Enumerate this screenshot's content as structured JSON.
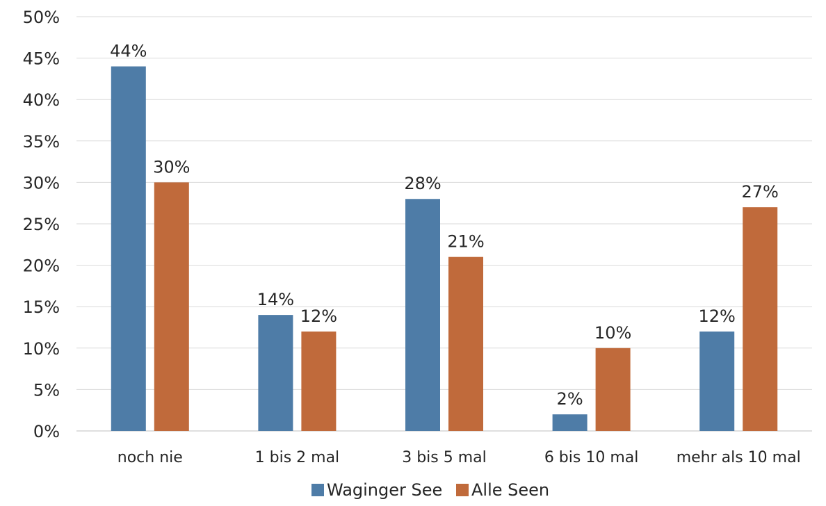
{
  "chart_data": {
    "type": "bar",
    "categories": [
      "noch nie",
      "1 bis 2 mal",
      "3 bis 5 mal",
      "6 bis 10 mal",
      "mehr als 10 mal"
    ],
    "series": [
      {
        "name": "Waginger See",
        "values": [
          44,
          14,
          28,
          2,
          12
        ],
        "labels": [
          "44%",
          "14%",
          "28%",
          "2%",
          "12%"
        ],
        "color": "#4e7ca7"
      },
      {
        "name": "Alle Seen",
        "values": [
          30,
          12,
          21,
          10,
          27
        ],
        "labels": [
          "30%",
          "12%",
          "21%",
          "10%",
          "27%"
        ],
        "color": "#c06a3b"
      }
    ],
    "ylim": [
      0,
      50
    ],
    "yticks": [
      0,
      5,
      10,
      15,
      20,
      25,
      30,
      35,
      40,
      45,
      50
    ],
    "ytick_labels": [
      "0%",
      "5%",
      "10%",
      "15%",
      "20%",
      "25%",
      "30%",
      "35%",
      "40%",
      "45%",
      "50%"
    ],
    "grid": true,
    "legend_position": "bottom"
  }
}
